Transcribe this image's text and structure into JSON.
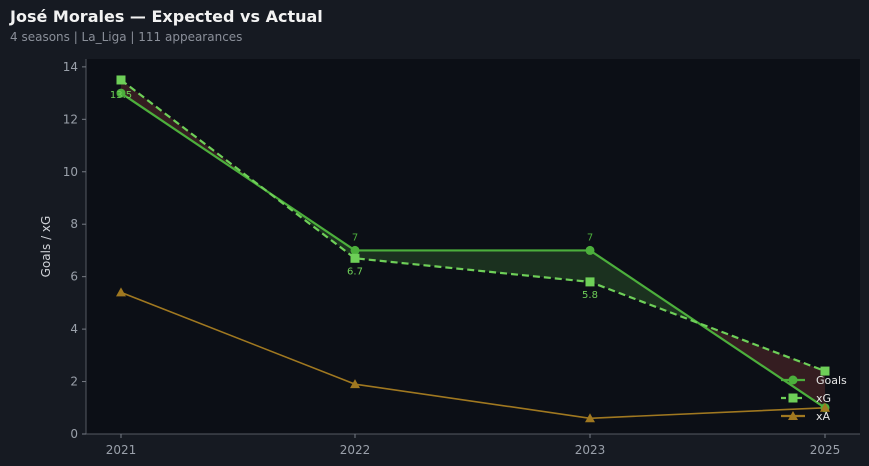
{
  "header": {
    "title": "José Morales — Expected vs Actual",
    "subtitle": "4 seasons | La_Liga | 111 appearances"
  },
  "chart_data": {
    "type": "line",
    "x": [
      "2021",
      "2022",
      "2023",
      "2025"
    ],
    "ylabel": "Goals / xG",
    "xlabel": "",
    "ylim": [
      0,
      14.3
    ],
    "yticks": [
      0,
      2,
      4,
      6,
      8,
      10,
      12,
      14
    ],
    "grid": false,
    "legend_position": "bottom-right",
    "series": [
      {
        "name": "Goals",
        "values": [
          13,
          7,
          7,
          1
        ],
        "color": "#4caf3c",
        "marker": "circle",
        "style": "solid"
      },
      {
        "name": "xG",
        "values": [
          13.5,
          6.7,
          5.8,
          2.4
        ],
        "color": "#6ecf58",
        "marker": "square",
        "style": "dashed"
      },
      {
        "name": "xA",
        "values": [
          5.4,
          1.9,
          0.6,
          1.0
        ],
        "color": "#a07820",
        "marker": "triangle",
        "style": "solid"
      }
    ],
    "data_labels": [
      {
        "series": "Goals",
        "index": 1,
        "text": "7"
      },
      {
        "series": "Goals",
        "index": 2,
        "text": "7"
      },
      {
        "series": "xG",
        "index": 0,
        "text": "13.5"
      },
      {
        "series": "xG",
        "index": 1,
        "text": "6.7"
      },
      {
        "series": "xG",
        "index": 2,
        "text": "5.8"
      }
    ],
    "fill_colors": {
      "over": "#1d3520",
      "under": "#3a1f22"
    }
  }
}
